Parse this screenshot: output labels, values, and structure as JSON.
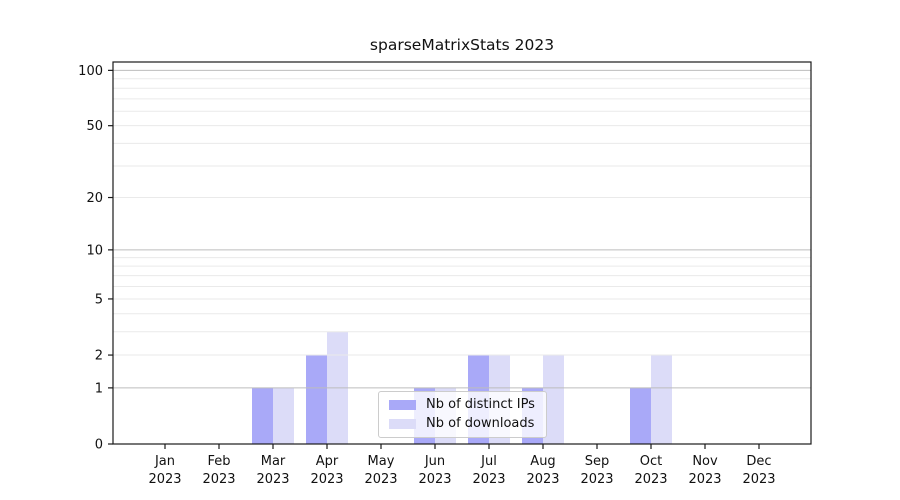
{
  "page": {
    "background": "#ffffff"
  },
  "chart_data": {
    "type": "bar",
    "title": "sparseMatrixStats 2023",
    "categories": [
      "Jan",
      "Feb",
      "Mar",
      "Apr",
      "May",
      "Jun",
      "Jul",
      "Aug",
      "Sep",
      "Oct",
      "Nov",
      "Dec"
    ],
    "category_year": "2023",
    "series": [
      {
        "name": "Nb of distinct IPs",
        "color": "#a9a9f8",
        "values": [
          0,
          0,
          1,
          2,
          0,
          1,
          2,
          1,
          0,
          1,
          0,
          0
        ]
      },
      {
        "name": "Nb of downloads",
        "color": "#dcdcf8",
        "values": [
          0,
          0,
          1,
          3,
          0,
          1,
          2,
          2,
          0,
          2,
          0,
          0
        ]
      }
    ],
    "xlabel": "",
    "ylabel": "",
    "yscale": "log1p",
    "ylim": [
      0,
      111
    ],
    "yticks": [
      0,
      1,
      2,
      5,
      10,
      20,
      50,
      100
    ],
    "grid": {
      "major_values": [
        1,
        10,
        100
      ],
      "minor_values": [
        2,
        3,
        4,
        5,
        6,
        7,
        8,
        9,
        20,
        30,
        40,
        50,
        60,
        70,
        80,
        90
      ],
      "major_color": "#bdbdbd",
      "minor_color": "#eaeaea"
    },
    "legend": {
      "position": "inside-bottom-center",
      "items": [
        "Nb of distinct IPs",
        "Nb of downloads"
      ]
    }
  },
  "colors": {
    "axis": "#1a1a1a",
    "tick_text": "#111111"
  }
}
